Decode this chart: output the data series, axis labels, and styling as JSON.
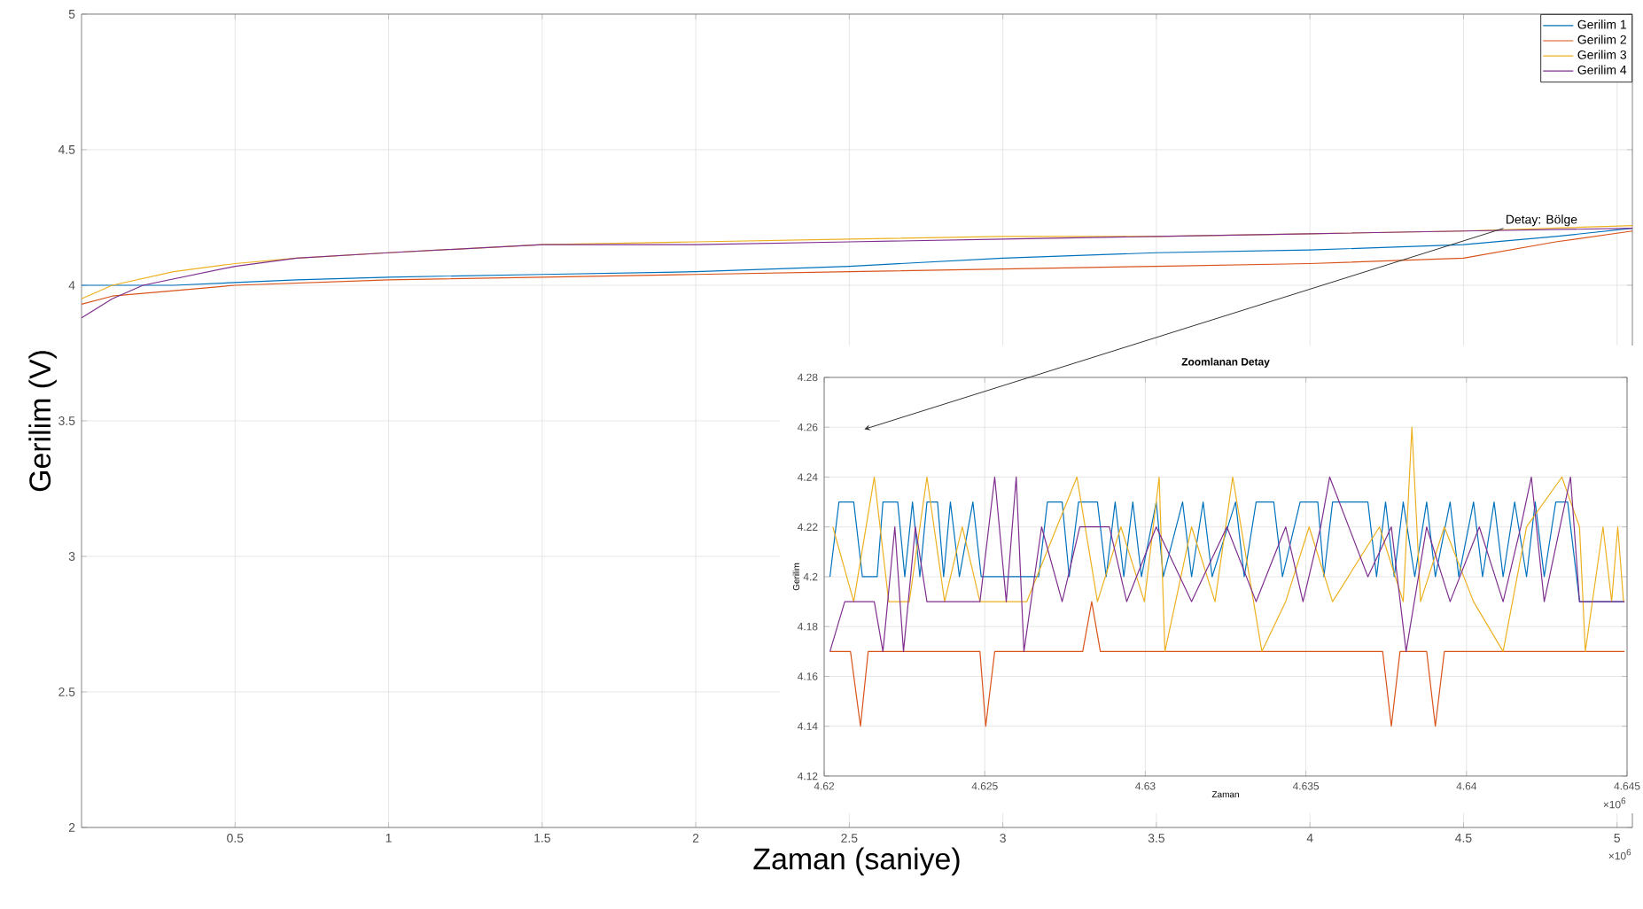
{
  "chart_data": [
    {
      "type": "line",
      "xlabel": "Zaman (saniye)",
      "ylabel": "Gerilim (V)",
      "xlim": [
        0,
        5.05
      ],
      "ylim": [
        2,
        5
      ],
      "xticks": [
        0.5,
        1,
        1.5,
        2,
        2.5,
        3,
        3.5,
        4,
        4.5,
        5
      ],
      "yticks": [
        2,
        2.5,
        3,
        3.5,
        4,
        4.5,
        5
      ],
      "grid": true,
      "legend": "top right",
      "annotations": [
        "×10$^{6}$",
        {
          "text": "Detay: Bölge",
          "x": 4.63,
          "y": 4.21
        }
      ],
      "series": [
        {
          "name": "Gerilim 1",
          "color": "#0072bd",
          "x": [
            0,
            0.1,
            0.3,
            0.5,
            0.7,
            1,
            1.5,
            2,
            2.5,
            3,
            3.5,
            4,
            4.5,
            4.8,
            5.05
          ],
          "values": [
            4.0,
            4.0,
            4.0,
            4.01,
            4.02,
            4.03,
            4.04,
            4.05,
            4.07,
            4.1,
            4.12,
            4.13,
            4.15,
            4.18,
            4.21
          ]
        },
        {
          "name": "Gerilim 2",
          "color": "#d95319",
          "x": [
            0,
            0.1,
            0.3,
            0.5,
            1,
            1.5,
            2,
            2.5,
            3,
            3.5,
            4,
            4.5,
            4.8,
            5.05
          ],
          "values": [
            3.93,
            3.96,
            3.98,
            4.0,
            4.02,
            4.03,
            4.04,
            4.05,
            4.06,
            4.07,
            4.08,
            4.1,
            4.16,
            4.2
          ]
        },
        {
          "name": "Gerilim 3",
          "color": "#edb120",
          "x": [
            0,
            0.1,
            0.3,
            0.5,
            0.7,
            1,
            1.5,
            2,
            2.5,
            3,
            3.5,
            4,
            4.5,
            5.05
          ],
          "values": [
            3.95,
            4.0,
            4.05,
            4.08,
            4.1,
            4.12,
            4.15,
            4.16,
            4.17,
            4.18,
            4.18,
            4.19,
            4.2,
            4.22
          ]
        },
        {
          "name": "Gerilim 4",
          "color": "#7e2f8e",
          "x": [
            0,
            0.1,
            0.2,
            0.5,
            0.7,
            1,
            1.5,
            2,
            2.5,
            3,
            3.5,
            4,
            4.5,
            5.05
          ],
          "values": [
            3.88,
            3.95,
            4.0,
            4.07,
            4.1,
            4.12,
            4.15,
            4.15,
            4.16,
            4.17,
            4.18,
            4.19,
            4.2,
            4.21
          ]
        }
      ]
    },
    {
      "type": "line",
      "title": "Zoomlanan Detay",
      "xlabel": "Zaman",
      "ylabel": "Gerilim",
      "xlim": [
        4.62,
        4.645
      ],
      "ylim": [
        4.12,
        4.28
      ],
      "xticks": [
        4.62,
        4.625,
        4.63,
        4.635,
        4.64,
        4.645
      ],
      "yticks": [
        4.12,
        4.14,
        4.16,
        4.18,
        4.2,
        4.22,
        4.24,
        4.26,
        4.28
      ],
      "grid": true,
      "annotations": [
        "×10$^{6}$"
      ],
      "series": [
        {
          "color": "#0072bd",
          "x": [
            4.62018,
            4.62046,
            4.62092,
            4.62119,
            4.62165,
            4.62183,
            4.62229,
            4.62251,
            4.62275,
            4.62298,
            4.6232,
            4.62353,
            4.62372,
            4.62393,
            4.62421,
            4.62463,
            4.62489,
            4.62668,
            4.62695,
            4.62741,
            4.62763,
            4.62792,
            4.62851,
            4.62878,
            4.62906,
            4.62933,
            4.62961,
            4.62988,
            4.63034,
            4.63056,
            4.63116,
            4.63144,
            4.6318,
            4.63208,
            4.63281,
            4.63308,
            4.63345,
            4.634,
            4.63427,
            4.63482,
            4.63537,
            4.63556,
            4.63583,
            4.63693,
            4.6372,
            4.63748,
            4.63775,
            4.63803,
            4.63839,
            4.63876,
            4.63903,
            4.63949,
            4.63976,
            4.64022,
            4.6405,
            4.64086,
            4.64114,
            4.6415,
            4.64187,
            4.64214,
            4.64242,
            4.64278,
            4.64315,
            4.64352,
            4.64492
          ],
          "values": [
            4.2,
            4.23,
            4.23,
            4.2,
            4.2,
            4.23,
            4.23,
            4.2,
            4.23,
            4.2,
            4.23,
            4.23,
            4.2,
            4.23,
            4.2,
            4.23,
            4.2,
            4.2,
            4.23,
            4.23,
            4.2,
            4.23,
            4.23,
            4.2,
            4.23,
            4.2,
            4.23,
            4.2,
            4.23,
            4.2,
            4.23,
            4.2,
            4.23,
            4.2,
            4.23,
            4.2,
            4.23,
            4.23,
            4.2,
            4.23,
            4.23,
            4.2,
            4.23,
            4.23,
            4.2,
            4.23,
            4.2,
            4.23,
            4.2,
            4.23,
            4.2,
            4.23,
            4.2,
            4.23,
            4.2,
            4.23,
            4.2,
            4.23,
            4.2,
            4.23,
            4.2,
            4.23,
            4.23,
            4.19,
            4.19
          ]
        },
        {
          "color": "#d95319",
          "x": [
            4.62018,
            4.62082,
            4.62113,
            4.62137,
            4.62485,
            4.62503,
            4.62531,
            4.62805,
            4.62833,
            4.6286,
            4.63739,
            4.63766,
            4.63793,
            4.63876,
            4.63903,
            4.63931,
            4.64492
          ],
          "values": [
            4.17,
            4.17,
            4.14,
            4.17,
            4.17,
            4.14,
            4.17,
            4.17,
            4.19,
            4.17,
            4.17,
            4.14,
            4.17,
            4.17,
            4.14,
            4.17,
            4.17
          ]
        },
        {
          "color": "#edb120",
          "x": [
            4.62027,
            4.62092,
            4.62156,
            4.62201,
            4.62265,
            4.6232,
            4.62375,
            4.6243,
            4.62485,
            4.62631,
            4.62787,
            4.62851,
            4.62924,
            4.62997,
            4.63043,
            4.63061,
            4.63144,
            4.63217,
            4.63272,
            4.63363,
            4.63437,
            4.6351,
            4.63583,
            4.63729,
            4.63803,
            4.6383,
            4.63857,
            4.63931,
            4.64022,
            4.64114,
            4.64187,
            4.64297,
            4.64352,
            4.6437,
            4.64425,
            4.64452,
            4.64471,
            4.64489
          ],
          "values": [
            4.22,
            4.19,
            4.24,
            4.19,
            4.19,
            4.24,
            4.19,
            4.22,
            4.19,
            4.19,
            4.24,
            4.19,
            4.22,
            4.19,
            4.24,
            4.17,
            4.22,
            4.19,
            4.24,
            4.17,
            4.19,
            4.22,
            4.19,
            4.22,
            4.19,
            4.26,
            4.19,
            4.22,
            4.19,
            4.17,
            4.22,
            4.24,
            4.22,
            4.17,
            4.22,
            4.19,
            4.22,
            4.19
          ]
        },
        {
          "color": "#7e2f8e",
          "x": [
            4.62018,
            4.62064,
            4.62156,
            4.62183,
            4.6222,
            4.62247,
            4.62284,
            4.6232,
            4.62485,
            4.62531,
            4.62567,
            4.62598,
            4.62622,
            4.62677,
            4.62741,
            4.62796,
            4.62888,
            4.62942,
            4.63034,
            4.63144,
            4.63254,
            4.63345,
            4.63437,
            4.63491,
            4.63546,
            4.63574,
            4.63693,
            4.63766,
            4.63812,
            4.63876,
            4.63949,
            4.6404,
            4.64114,
            4.64169,
            4.64202,
            4.64242,
            4.64324,
            4.64352,
            4.64492
          ],
          "values": [
            4.17,
            4.19,
            4.19,
            4.17,
            4.22,
            4.17,
            4.22,
            4.19,
            4.19,
            4.24,
            4.19,
            4.24,
            4.17,
            4.22,
            4.19,
            4.22,
            4.22,
            4.19,
            4.22,
            4.19,
            4.22,
            4.19,
            4.22,
            4.19,
            4.22,
            4.24,
            4.2,
            4.22,
            4.17,
            4.22,
            4.19,
            4.22,
            4.19,
            4.22,
            4.24,
            4.19,
            4.24,
            4.19,
            4.19
          ]
        }
      ]
    }
  ]
}
